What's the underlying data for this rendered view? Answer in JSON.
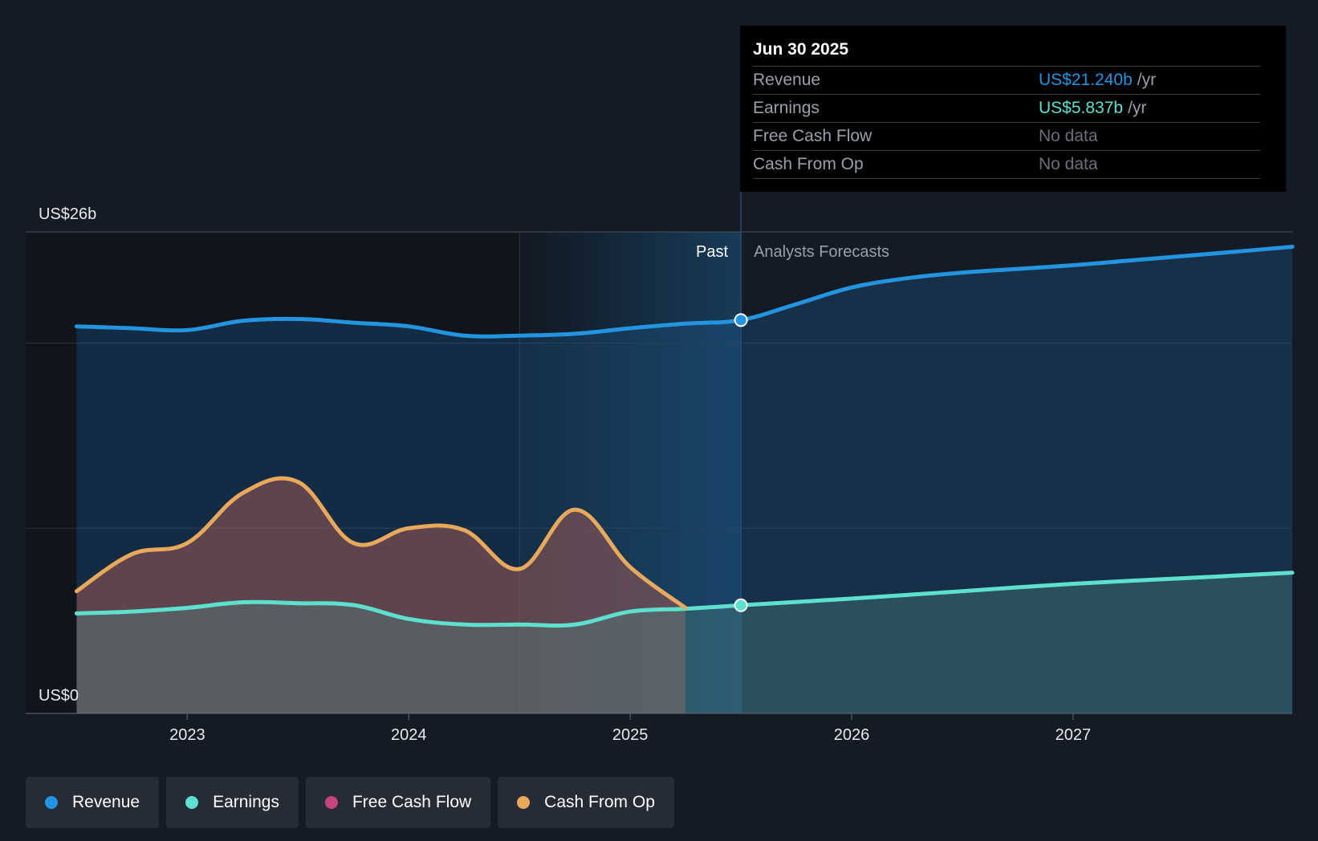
{
  "chart_data": {
    "type": "area",
    "title": "",
    "y_axis": {
      "top_label": "US$26b",
      "bottom_label": "US$0",
      "ylim": [
        0,
        26
      ],
      "unit": "US$b"
    },
    "x_ticks": [
      "2023",
      "2024",
      "2025",
      "2026",
      "2027"
    ],
    "x_range": [
      2022.27,
      2027.99
    ],
    "divider_x": 2025.5,
    "zone_labels": {
      "past": "Past",
      "forecast": "Analysts Forecasts"
    },
    "series": [
      {
        "name": "Revenue",
        "color": "#2394df",
        "x": [
          2022.5,
          2022.75,
          2023.0,
          2023.25,
          2023.5,
          2023.75,
          2024.0,
          2024.25,
          2024.5,
          2024.75,
          2025.0,
          2025.25,
          2025.5,
          2025.75,
          2026.0,
          2026.25,
          2026.5,
          2026.75,
          2027.0,
          2027.25,
          2027.5,
          2027.75,
          2027.99
        ],
        "values": [
          20.9,
          20.8,
          20.7,
          21.2,
          21.3,
          21.1,
          20.9,
          20.4,
          20.4,
          20.5,
          20.8,
          21.05,
          21.24,
          22.1,
          23.0,
          23.5,
          23.8,
          24.0,
          24.2,
          24.45,
          24.7,
          24.95,
          25.2
        ]
      },
      {
        "name": "Earnings",
        "color": "#5ee0cf",
        "x": [
          2022.5,
          2022.75,
          2023.0,
          2023.25,
          2023.5,
          2023.75,
          2024.0,
          2024.25,
          2024.5,
          2024.75,
          2025.0,
          2025.25,
          2025.5,
          2026.0,
          2026.5,
          2027.0,
          2027.5,
          2027.99
        ],
        "values": [
          5.4,
          5.5,
          5.7,
          6.0,
          5.95,
          5.85,
          5.1,
          4.8,
          4.8,
          4.8,
          5.5,
          5.65,
          5.837,
          6.2,
          6.6,
          7.0,
          7.3,
          7.6
        ]
      },
      {
        "name": "Free Cash Flow",
        "color": "#c7427f",
        "x": [],
        "values": []
      },
      {
        "name": "Cash From Op",
        "color": "#e8a95c",
        "x": [
          2022.5,
          2022.75,
          2023.0,
          2023.25,
          2023.5,
          2023.75,
          2024.0,
          2024.25,
          2024.5,
          2024.75,
          2025.0,
          2025.25
        ],
        "values": [
          6.6,
          8.6,
          9.2,
          11.9,
          12.5,
          9.2,
          10.0,
          9.9,
          7.8,
          11.0,
          7.9,
          5.7
        ]
      }
    ]
  },
  "tooltip": {
    "date": "Jun 30 2025",
    "rows": [
      {
        "name": "Revenue",
        "value": "US$21.240b",
        "unit": "/yr",
        "color": "#2394df"
      },
      {
        "name": "Earnings",
        "value": "US$5.837b",
        "unit": "/yr",
        "color": "#5ee0cf"
      },
      {
        "name": "Free Cash Flow",
        "value": "No data",
        "unit": "",
        "color": ""
      },
      {
        "name": "Cash From Op",
        "value": "No data",
        "unit": "",
        "color": ""
      }
    ]
  },
  "legend": [
    {
      "label": "Revenue",
      "color": "#2394df"
    },
    {
      "label": "Earnings",
      "color": "#5ee0cf"
    },
    {
      "label": "Free Cash Flow",
      "color": "#c7427f"
    },
    {
      "label": "Cash From Op",
      "color": "#e8a95c"
    }
  ]
}
